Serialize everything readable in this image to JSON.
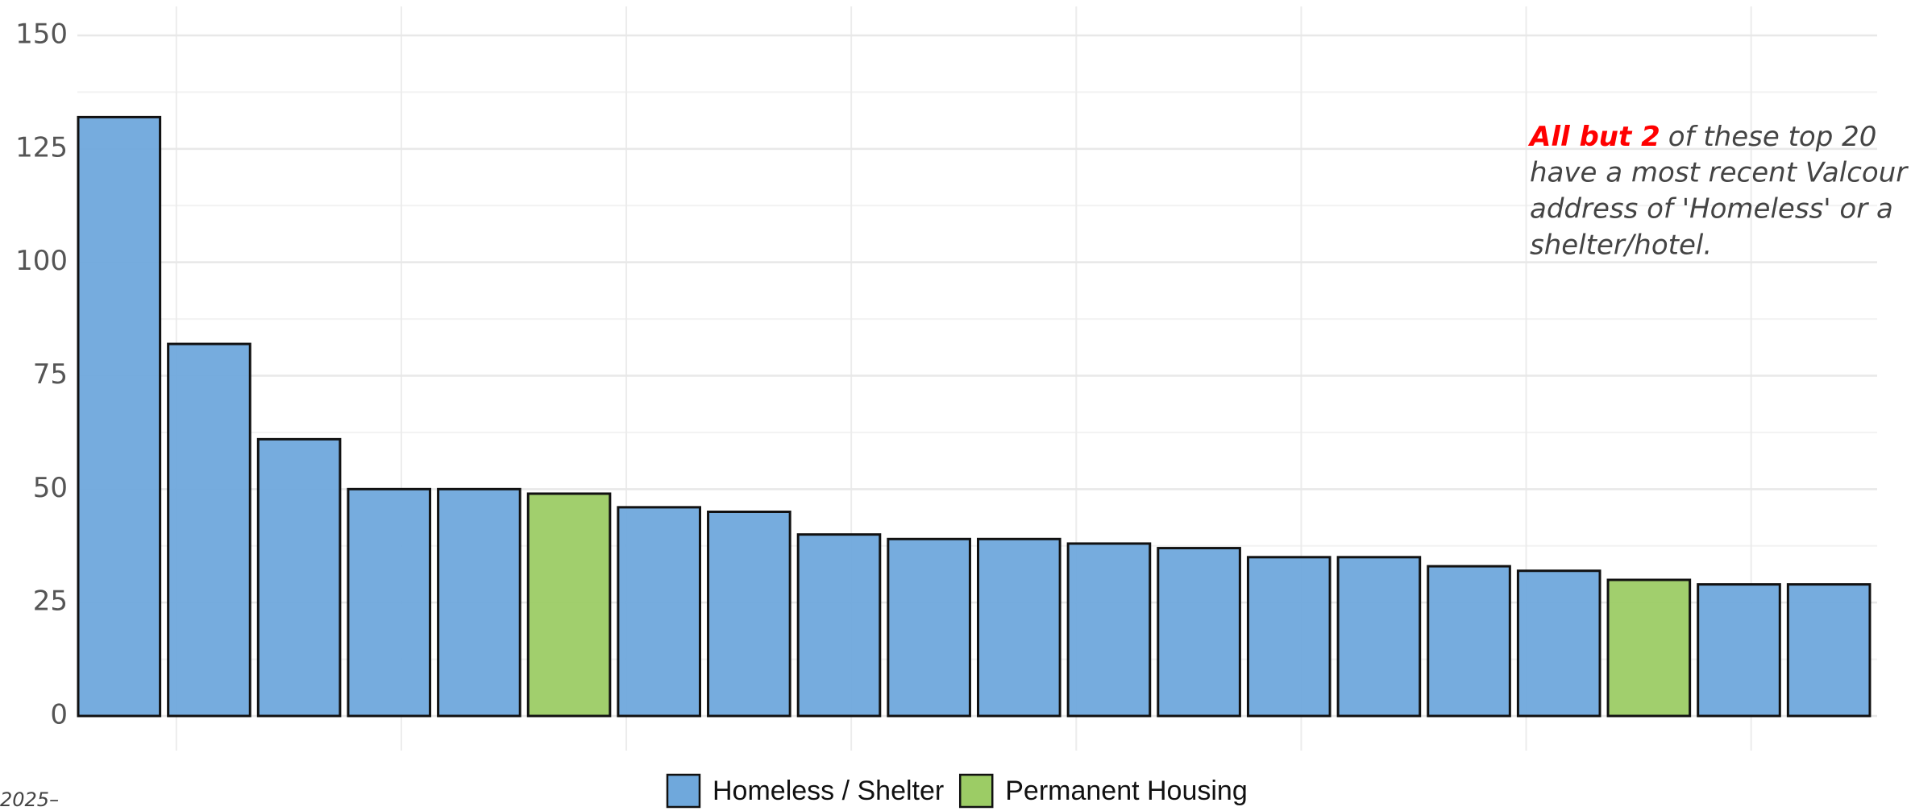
{
  "chart_data": {
    "type": "bar",
    "categories": [
      null,
      null,
      null,
      null,
      null,
      null,
      null,
      null,
      null,
      null,
      null,
      null,
      null,
      null,
      null,
      null,
      null,
      null,
      null,
      null
    ],
    "series": [
      {
        "name": "Homeless / Shelter",
        "color": "#6fa8dc",
        "values": [
          132,
          82,
          61,
          50,
          50,
          null,
          46,
          45,
          40,
          39,
          39,
          38,
          37,
          35,
          35,
          33,
          32,
          null,
          29,
          29
        ]
      },
      {
        "name": "Permanent Housing",
        "color": "#9ccc65",
        "values": [
          null,
          null,
          null,
          null,
          null,
          49,
          null,
          null,
          null,
          null,
          null,
          null,
          null,
          null,
          null,
          null,
          null,
          30,
          null,
          null
        ]
      }
    ],
    "ylim": [
      0,
      150
    ],
    "yticks": [
      0,
      25,
      50,
      75,
      100,
      125,
      150
    ],
    "grid": true,
    "annotation": {
      "highlight": "All but 2",
      "lines": [
        "of these top 20",
        "have a most recent Valcour",
        "address of 'Homeless' or a",
        "shelter/hotel."
      ]
    },
    "footnote": "2025–",
    "legend": "bottom"
  }
}
